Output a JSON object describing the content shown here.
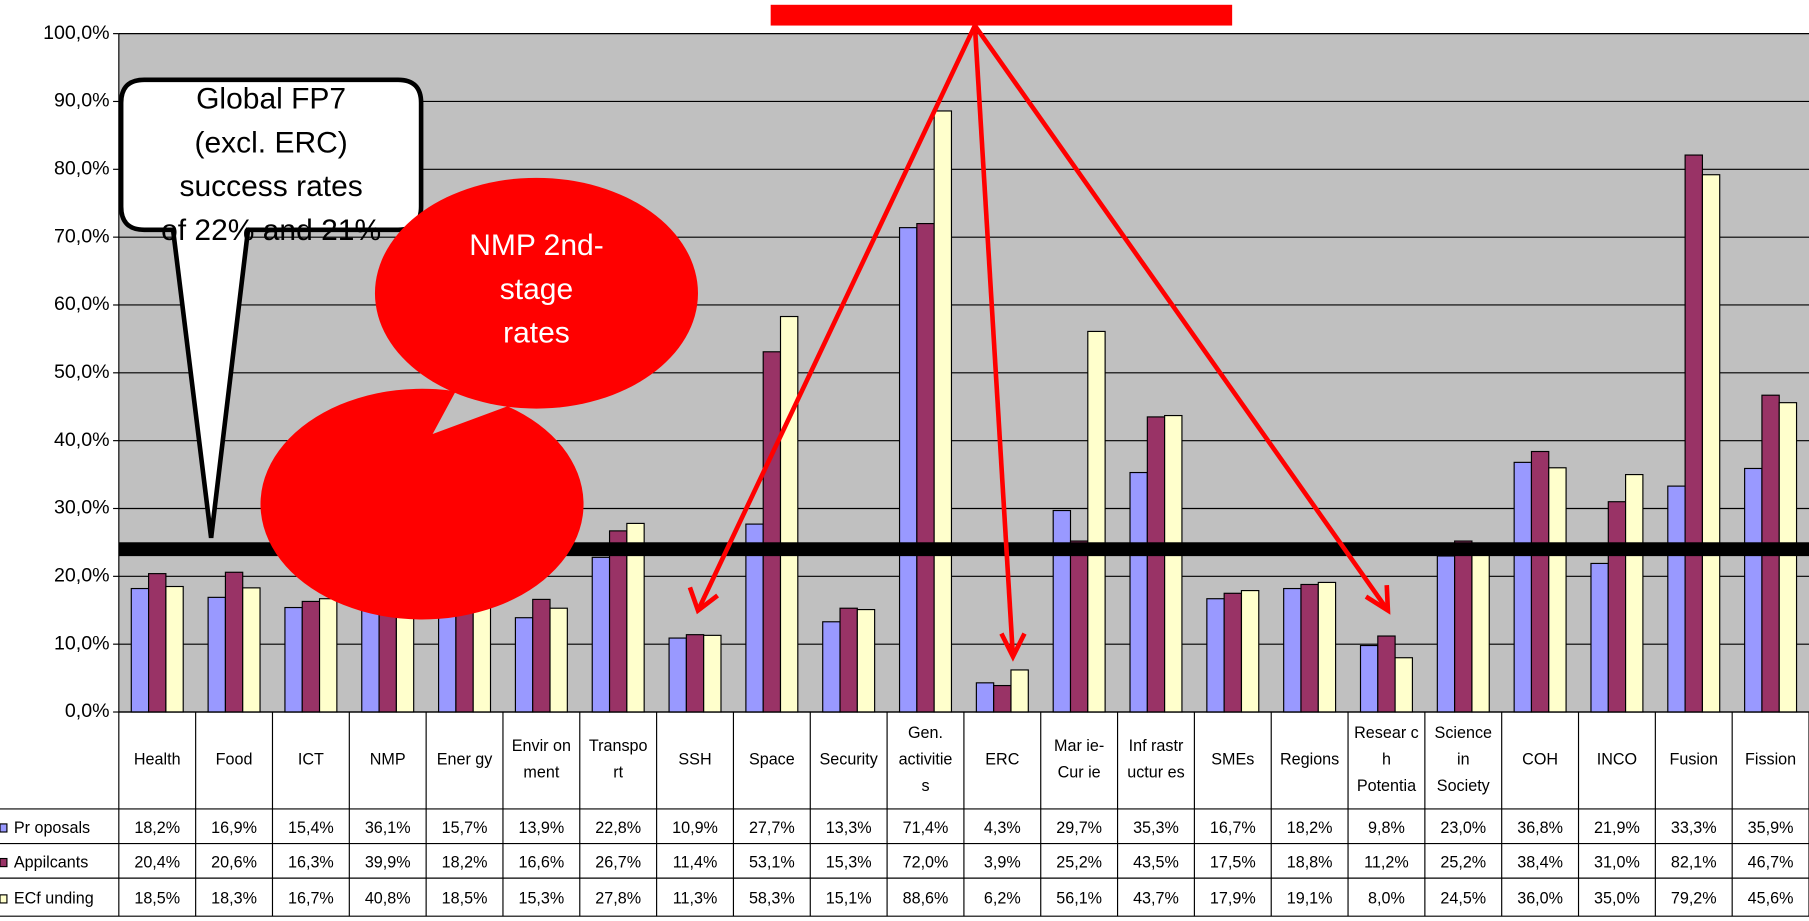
{
  "chart_data": {
    "type": "bar",
    "categories": [
      "Health",
      "Food",
      "ICT",
      "NMP",
      "Ener gy",
      "Envir on\nment",
      "Transpo\nrt",
      "SSH",
      "Space",
      "Security",
      "Gen.\nactivitie\ns",
      "ERC",
      "Mar ie-\nCur ie",
      "Inf rastr\nuctur es",
      "SMEs",
      "Regions",
      "Resear c\nh\nPotentia",
      "Science\nin\nSociety",
      "COH",
      "INCO",
      "Fusion",
      "Fission"
    ],
    "series": [
      {
        "name": "Pr oposals",
        "color": "#9999ff",
        "values": [
          18.2,
          16.9,
          15.4,
          36.1,
          15.7,
          13.9,
          22.8,
          10.9,
          27.7,
          13.3,
          71.4,
          4.3,
          29.7,
          35.3,
          16.7,
          18.2,
          9.8,
          23.0,
          36.8,
          21.9,
          33.3,
          35.9
        ],
        "value_labels": [
          "18,2%",
          "16,9%",
          "15,4%",
          "36,1%",
          "15,7%",
          "13,9%",
          "22,8%",
          "10,9%",
          "27,7%",
          "13,3%",
          "71,4%",
          "4,3%",
          "29,7%",
          "35,3%",
          "16,7%",
          "18,2%",
          "9,8%",
          "23,0%",
          "36,8%",
          "21,9%",
          "33,3%",
          "35,9%"
        ]
      },
      {
        "name": "Appilcants",
        "color": "#993366",
        "values": [
          20.4,
          20.6,
          16.3,
          39.9,
          18.2,
          16.6,
          26.7,
          11.4,
          53.1,
          15.3,
          72.0,
          3.9,
          25.2,
          43.5,
          17.5,
          18.8,
          11.2,
          25.2,
          38.4,
          31.0,
          82.1,
          46.7
        ],
        "value_labels": [
          "20,4%",
          "20,6%",
          "16,3%",
          "39,9%",
          "18,2%",
          "16,6%",
          "26,7%",
          "11,4%",
          "53,1%",
          "15,3%",
          "72,0%",
          "3,9%",
          "25,2%",
          "43,5%",
          "17,5%",
          "18,8%",
          "11,2%",
          "25,2%",
          "38,4%",
          "31,0%",
          "82,1%",
          "46,7%"
        ]
      },
      {
        "name": "ECf unding",
        "color": "#ffffcc",
        "values": [
          18.5,
          18.3,
          16.7,
          40.8,
          18.5,
          15.3,
          27.8,
          11.3,
          58.3,
          15.1,
          88.6,
          6.2,
          56.1,
          43.7,
          17.9,
          19.1,
          8.0,
          24.5,
          36.0,
          35.0,
          79.2,
          45.6
        ],
        "value_labels": [
          "18,5%",
          "18,3%",
          "16,7%",
          "40,8%",
          "18,5%",
          "15,3%",
          "27,8%",
          "11,3%",
          "58,3%",
          "15,1%",
          "88,6%",
          "6,2%",
          "56,1%",
          "43,7%",
          "17,9%",
          "19,1%",
          "8,0%",
          "24,5%",
          "36,0%",
          "35,0%",
          "79,2%",
          "45,6%"
        ]
      }
    ],
    "ylim": [
      0,
      100
    ],
    "yticks": [
      {
        "value": 0,
        "label": "0,0%"
      },
      {
        "value": 10,
        "label": "10,0%"
      },
      {
        "value": 20,
        "label": "20,0%"
      },
      {
        "value": 30,
        "label": "30,0%"
      },
      {
        "value": 40,
        "label": "40,0%"
      },
      {
        "value": 50,
        "label": "50,0%"
      },
      {
        "value": 60,
        "label": "60,0%"
      },
      {
        "value": 70,
        "label": "70,0%"
      },
      {
        "value": 80,
        "label": "80,0%"
      },
      {
        "value": 90,
        "label": "90,0%"
      },
      {
        "value": 100,
        "label": "100,0%"
      }
    ],
    "grid": true,
    "reference_line": 24,
    "annotations": [
      "Global FP7\n(excl. ERC)\nsuccess rates\nof 22% and 21%",
      "NMP 2nd-\nstage\nrates"
    ]
  }
}
